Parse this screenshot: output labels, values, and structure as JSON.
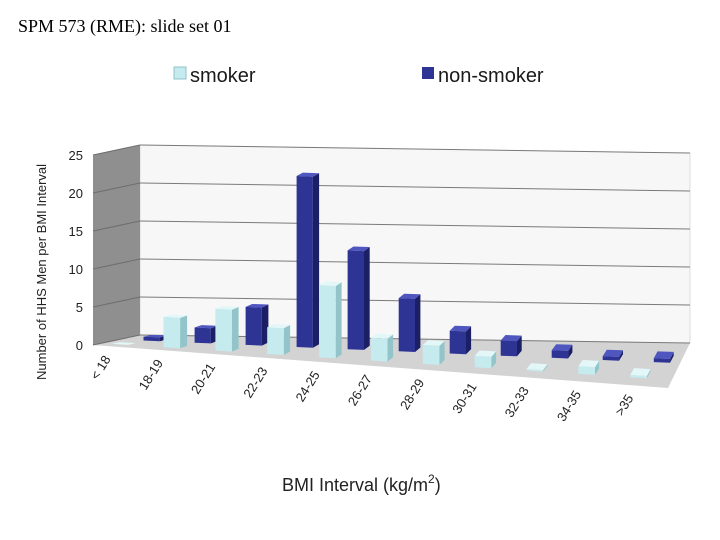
{
  "header": {
    "title": "SPM 573 (RME): slide set 01"
  },
  "colors": {
    "smoker_front": "#c5ebee",
    "smoker_side": "#92c4c9",
    "smoker_top": "#e4f7f8",
    "nonsmoker_front": "#2e3494",
    "nonsmoker_side": "#1b1f66",
    "nonsmoker_top": "#4f56c0",
    "back_wall": "#f7f7f7",
    "side_wall": "#8f8f8f",
    "floor": "#d3d3d3",
    "gridline": "#7a7a7a"
  },
  "chart_data": {
    "type": "bar",
    "categories": [
      "< 18",
      "18-19",
      "20-21",
      "22-23",
      "24-25",
      "26-27",
      "28-29",
      "30-31",
      "32-33",
      "34-35",
      ">35"
    ],
    "series": [
      {
        "name": "smoker",
        "values": [
          0,
          4,
          5.5,
          3.5,
          9.5,
          3,
          2.5,
          1.5,
          0.2,
          1,
          0.3
        ]
      },
      {
        "name": "non-smoker",
        "values": [
          0.5,
          2,
          5,
          22.5,
          13,
          7,
          3,
          2,
          1,
          0.5,
          0.5
        ]
      }
    ],
    "ylim": [
      0,
      25
    ],
    "yticks": [
      "0",
      "5",
      "10",
      "15",
      "20",
      "25"
    ],
    "ylabel": "Number of HHS Men per BMI Interval",
    "xlabel": "BMI Interval (kg/m",
    "xlabel_sup": "2",
    "xlabel_end": ")",
    "legend": {
      "position": "top",
      "entries": [
        "smoker",
        "non-smoker"
      ]
    },
    "grid": true,
    "style": "3d-clustered-column"
  }
}
